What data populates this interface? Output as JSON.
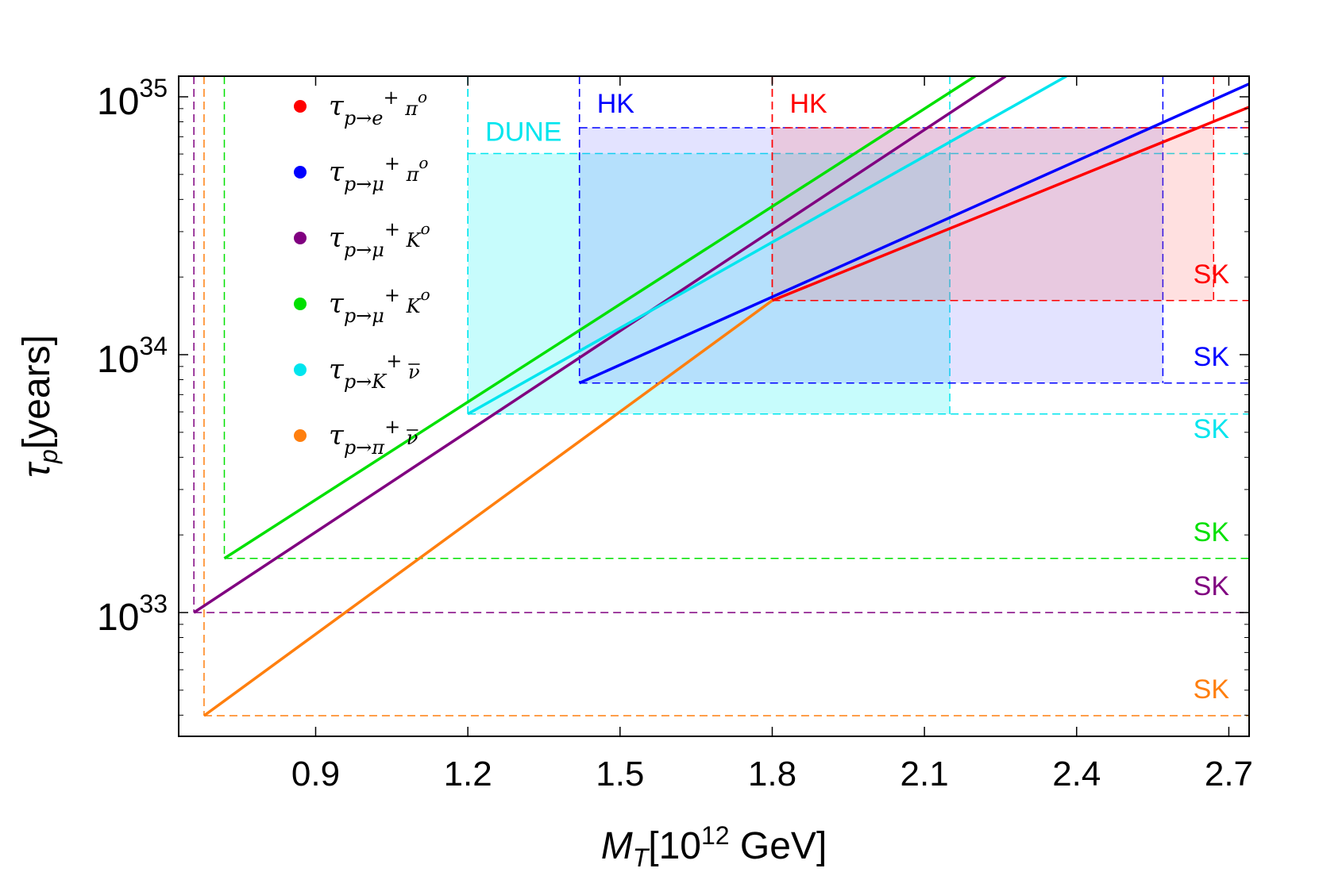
{
  "chart_data": {
    "type": "line",
    "xlabel": "M_T[10^12 GeV]",
    "xlabel_parts": {
      "main": "M",
      "sub": "T",
      "pre": "[10",
      "sup": "12",
      "post": " GeV]"
    },
    "ylabel": "τ_p[years]",
    "ylabel_parts": {
      "main": "τ",
      "sub": "p",
      "post": "[years]"
    },
    "xlim": [
      0.63,
      2.74
    ],
    "ylim_log10": [
      32.52,
      35.08
    ],
    "y_scale": "log",
    "x_ticks": [
      {
        "v": 0.9,
        "label": "0.9"
      },
      {
        "v": 1.2,
        "label": "1.2"
      },
      {
        "v": 1.5,
        "label": "1.5"
      },
      {
        "v": 1.8,
        "label": "1.8"
      },
      {
        "v": 2.1,
        "label": "2.1"
      },
      {
        "v": 2.4,
        "label": "2.4"
      },
      {
        "v": 2.7,
        "label": "2.7"
      }
    ],
    "y_ticks": [
      {
        "log": 33,
        "base": "10",
        "exp": "33"
      },
      {
        "log": 34,
        "base": "10",
        "exp": "34"
      },
      {
        "log": 35,
        "base": "10",
        "exp": "35"
      }
    ],
    "grid": false,
    "legend_position": "top-left",
    "series": [
      {
        "name": "τp→e+ π0",
        "legend": {
          "tau": "τ",
          "sub": "p→e",
          "sup1": "+",
          "mid": " π",
          "sup2": "o"
        },
        "color": "#ff0000",
        "x": [
          1.8,
          2.74
        ],
        "y_log10": [
          34.21,
          34.96
        ]
      },
      {
        "name": "τp→μ+ π0",
        "legend": {
          "tau": "τ",
          "sub": "p→μ",
          "sup1": "+",
          "mid": " π",
          "sup2": "o"
        },
        "color": "#0000ff",
        "x": [
          1.42,
          2.74
        ],
        "y_log10": [
          33.89,
          35.05
        ]
      },
      {
        "name": "τp→μ+ K0",
        "legend": {
          "tau": "τ",
          "sub": "p→μ",
          "sup1": "+",
          "mid": " K",
          "sup2": "o"
        },
        "color": "#800080",
        "x": [
          0.66,
          2.26
        ],
        "y_log10": [
          33.0,
          35.08
        ]
      },
      {
        "name": "τp→μ+ K0",
        "legend": {
          "tau": "τ",
          "sub": "p→μ",
          "sup1": "+",
          "mid": " K",
          "sup2": "o"
        },
        "color": "#00e000",
        "x": [
          0.72,
          2.2
        ],
        "y_log10": [
          33.21,
          35.08
        ]
      },
      {
        "name": "τp→K+ ν̄",
        "legend": {
          "tau": "τ",
          "sub": "p→K",
          "sup1": "+",
          "mid": " ν",
          "sup2": "",
          "bar": true
        },
        "color": "#00e5ee",
        "x": [
          1.2,
          2.38
        ],
        "y_log10": [
          33.77,
          35.08
        ]
      },
      {
        "name": "τp→π+ ν̄",
        "legend": {
          "tau": "τ",
          "sub": "p→π",
          "sup1": "+",
          "mid": " ν",
          "sup2": "",
          "bar": true
        },
        "color": "#ff7f0e",
        "x": [
          0.68,
          1.8
        ],
        "y_log10": [
          32.6,
          34.21
        ]
      }
    ],
    "bounds": [
      {
        "label": "SK",
        "color": "#ff0000",
        "x_min": 1.8,
        "y_log10": 34.21
      },
      {
        "label": "SK",
        "color": "#0000ff",
        "x_min": 1.42,
        "y_log10": 33.89
      },
      {
        "label": "SK",
        "color": "#00e5ee",
        "x_min": 1.2,
        "y_log10": 33.77
      },
      {
        "label": "SK",
        "color": "#00e000",
        "x_min": 0.72,
        "y_log10": 33.21
      },
      {
        "label": "SK",
        "color": "#800080",
        "x_min": 0.66,
        "y_log10": 33.0
      },
      {
        "label": "SK",
        "color": "#ff7f0e",
        "x_min": 0.68,
        "y_log10": 32.6
      }
    ],
    "regions": [
      {
        "label": "DUNE",
        "color": "#00e5ee",
        "fill": "#00f0f0",
        "opacity": 0.22,
        "x": [
          1.2,
          2.15
        ],
        "y_log10": [
          33.77,
          34.78
        ]
      },
      {
        "label": "HK",
        "color": "#0000ff",
        "fill": "#6666ff",
        "opacity": 0.18,
        "x": [
          1.42,
          2.57
        ],
        "y_log10": [
          33.89,
          34.88
        ]
      },
      {
        "label": "HK",
        "color": "#ff0000",
        "fill": "#ff6666",
        "opacity": 0.2,
        "x": [
          1.8,
          2.67
        ],
        "y_log10": [
          34.21,
          34.88
        ]
      }
    ]
  }
}
